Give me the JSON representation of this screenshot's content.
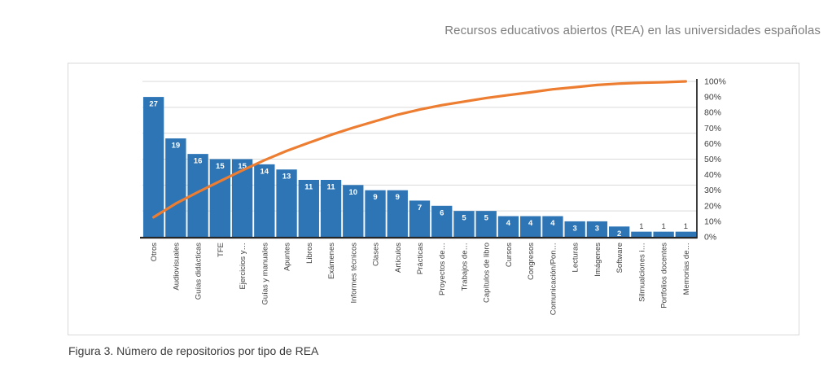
{
  "header": {
    "title": "Recursos educativos abiertos (REA) en las universidades españolas"
  },
  "figure_caption": "Figura 3. Número de repositorios por tipo de REA",
  "chart_data": {
    "type": "bar",
    "subtype": "pareto_combo_bar_line",
    "title": "",
    "xlabel": "",
    "ylabel": "",
    "legend": "none",
    "grid": "horizontal",
    "categories": [
      "Otros",
      "Audiovisuales",
      "Guías didácticas",
      "TFE",
      "Ejercicios y…",
      "Guías y manuales",
      "Apuntes",
      "Libros",
      "Exámenes",
      "Informes técnicos",
      "Clases",
      "Artículos",
      "Prácticas",
      "Proyectos de…",
      "Trabajos de…",
      "Capítulos de libro",
      "Cursos",
      "Congresos",
      "Comunicación/Pon…",
      "Lecturas",
      "Imágenes",
      "Software",
      "Silmualciones i…",
      "Portfolios docentes",
      "Memorias de…"
    ],
    "series": [
      {
        "name": "bars",
        "type": "bar",
        "axis": "left",
        "values": [
          27,
          19,
          16,
          15,
          15,
          14,
          13,
          11,
          11,
          10,
          9,
          9,
          7,
          6,
          5,
          5,
          4,
          4,
          4,
          3,
          3,
          2,
          1,
          1,
          1
        ]
      },
      {
        "name": "cumulative-line",
        "type": "line",
        "axis": "right",
        "values": [
          12.6,
          21.4,
          28.8,
          35.8,
          42.8,
          49.3,
          55.3,
          60.5,
          65.6,
          70.2,
          74.4,
          78.6,
          81.9,
          84.7,
          87.0,
          89.3,
          91.2,
          93.0,
          94.9,
          96.3,
          97.7,
          98.6,
          99.1,
          99.5,
          100.0
        ]
      }
    ],
    "left_axis": {
      "visible": false,
      "min": 0,
      "max": 30,
      "gridline_step": 5
    },
    "right_axis": {
      "min": 0,
      "max": 100,
      "step": 10,
      "tick_labels_top_to_bottom": [
        "100%",
        "90%",
        "80%",
        "70%",
        "60%",
        "50%",
        "40%",
        "30%",
        "20%",
        "10%",
        "0%"
      ]
    },
    "colors": {
      "bar": "#2E75B6",
      "line": "#ED7D31",
      "axis": "#262626",
      "gridline": "#D9D9D9",
      "tick_text": "#404040",
      "bar_label": "#FFFFFF",
      "small_bar_label": "#404040"
    }
  }
}
